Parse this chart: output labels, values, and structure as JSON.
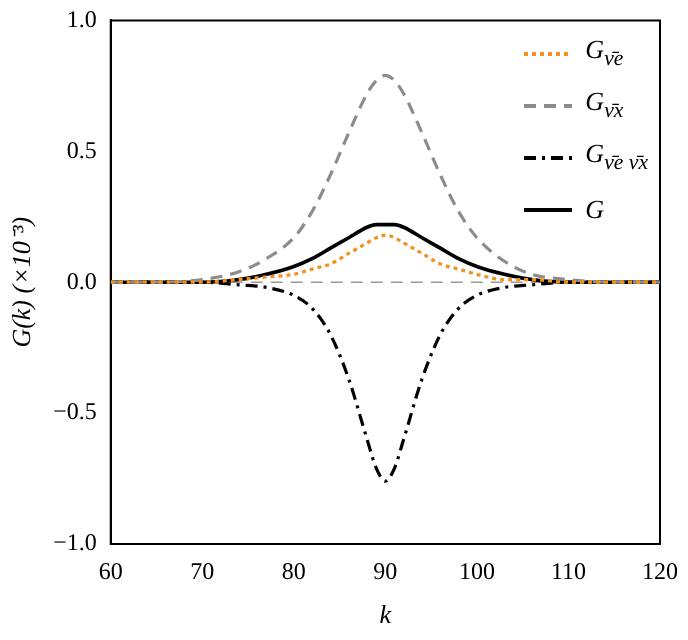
{
  "chart_data": {
    "type": "line",
    "xlabel": "k",
    "ylabel": "G(k) (×10⁻³)",
    "x": [
      60,
      65,
      70,
      74,
      77,
      80,
      82,
      84,
      86,
      88,
      89,
      90,
      91,
      92,
      94,
      96,
      98,
      100,
      103,
      106,
      110,
      115,
      120
    ],
    "xlim": [
      60,
      120
    ],
    "xticks": [
      60,
      70,
      80,
      90,
      100,
      110,
      120
    ],
    "ylim": [
      -1,
      1
    ],
    "yticks": [
      {
        "value": -1,
        "label": "−1.0"
      },
      {
        "value": -0.5,
        "label": "−0.5"
      },
      {
        "value": 0,
        "label": "0.0"
      },
      {
        "value": 0.5,
        "label": "0.5"
      },
      {
        "value": 1,
        "label": "1.0"
      }
    ],
    "grid": false,
    "legend": "top right",
    "marker": "none",
    "ref_lines": [
      {
        "axis": "y",
        "value": 0,
        "color": "#999999",
        "line_style": "dashed"
      }
    ],
    "series": [
      {
        "name": "G$_{ν̄e}$",
        "color": "#f5901e",
        "line_style": "dotted",
        "values": [
          0,
          0,
          0,
          0.01,
          0.02,
          0.03,
          0.05,
          0.07,
          0.11,
          0.15,
          0.17,
          0.18,
          0.17,
          0.15,
          0.11,
          0.07,
          0.05,
          0.03,
          0.01,
          0.01,
          0,
          0,
          0
        ]
      },
      {
        "name": "G$_{ν̄x}$",
        "color": "#8c8c8c",
        "line_style": "dashed",
        "values": [
          0,
          0,
          0.01,
          0.04,
          0.09,
          0.17,
          0.27,
          0.41,
          0.57,
          0.72,
          0.77,
          0.79,
          0.77,
          0.72,
          0.57,
          0.41,
          0.27,
          0.17,
          0.08,
          0.03,
          0.01,
          0,
          0
        ]
      },
      {
        "name": "G$_{ν̄e ν̄x}$",
        "color": "#000000",
        "line_style": "dashdot",
        "values": [
          0,
          0,
          0,
          -0.01,
          -0.02,
          -0.05,
          -0.1,
          -0.2,
          -0.37,
          -0.6,
          -0.71,
          -0.76,
          -0.71,
          -0.6,
          -0.37,
          -0.2,
          -0.1,
          -0.05,
          -0.02,
          -0.01,
          0,
          0,
          0
        ]
      },
      {
        "name": "G",
        "color": "#000000",
        "line_style": "solid",
        "values": [
          0,
          0,
          0,
          0.01,
          0.03,
          0.06,
          0.09,
          0.13,
          0.17,
          0.21,
          0.22,
          0.22,
          0.22,
          0.21,
          0.17,
          0.13,
          0.09,
          0.06,
          0.03,
          0.01,
          0,
          0,
          0
        ]
      }
    ]
  }
}
